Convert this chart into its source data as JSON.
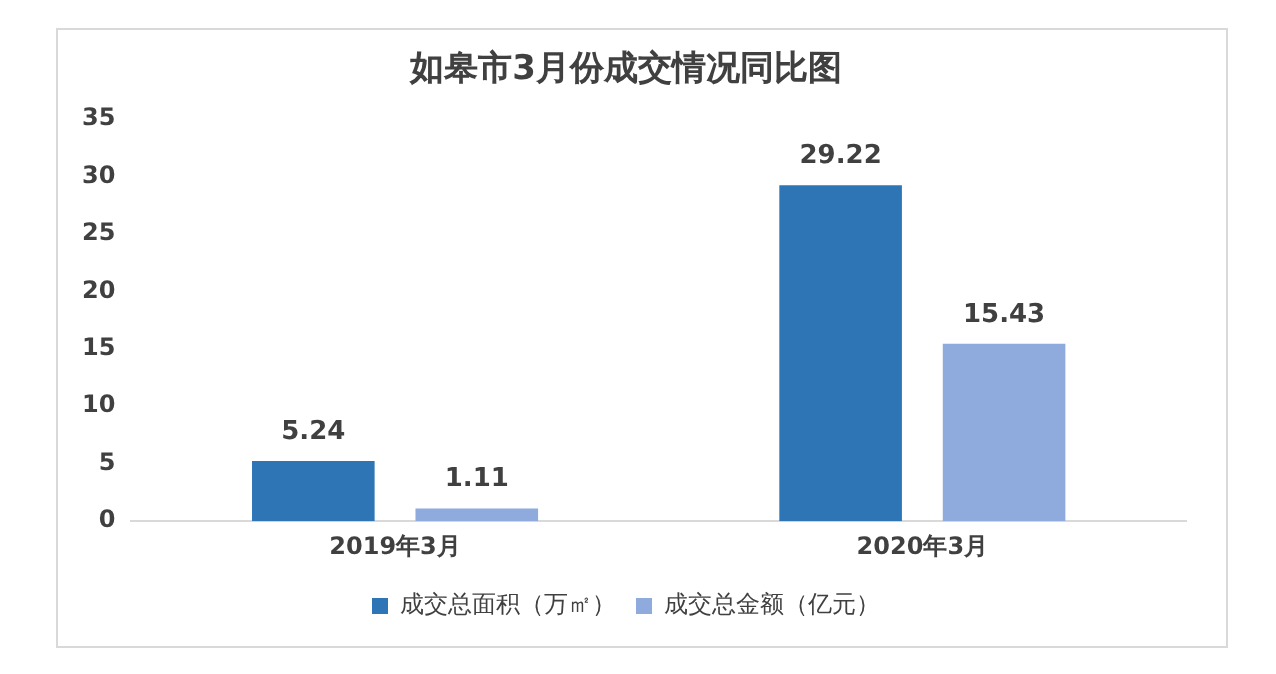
{
  "chart_data": {
    "type": "bar",
    "title": "如皋市3月份成交情况同比图",
    "categories": [
      "2019年3月",
      "2020年3月"
    ],
    "series": [
      {
        "name": "成交总面积（万㎡）",
        "color": "#2e75b6",
        "values": [
          5.24,
          29.22
        ]
      },
      {
        "name": "成交总金额（亿元）",
        "color": "#8faadc",
        "values": [
          1.11,
          15.43
        ]
      }
    ],
    "ylim": [
      0,
      35
    ],
    "yticks": [
      0,
      5,
      10,
      15,
      20,
      25,
      30,
      35
    ],
    "grid": false,
    "legend": "bottom",
    "data_labels": true
  }
}
